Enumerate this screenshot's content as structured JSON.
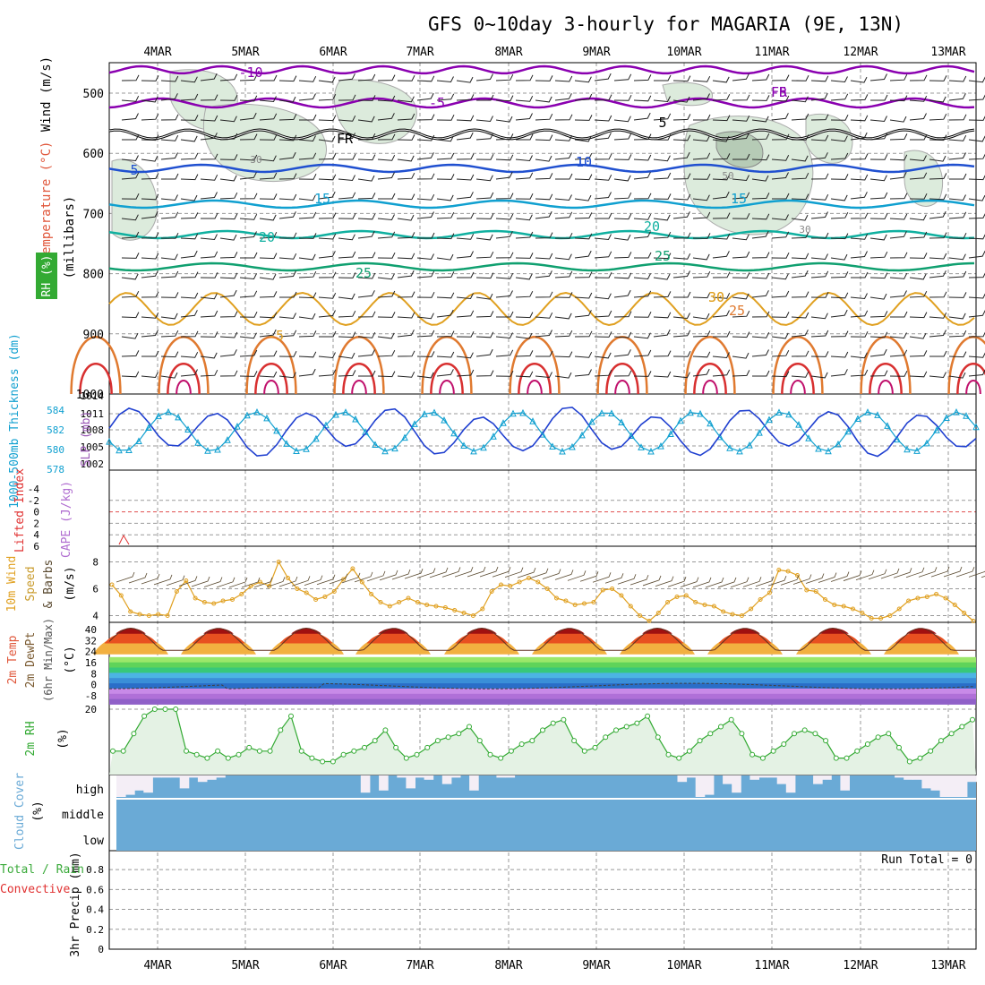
{
  "title": "GFS 0~10day 3-hourly for MAGARIA (9E, 13N)",
  "dates": [
    "4MAR",
    "5MAR",
    "6MAR",
    "7MAR",
    "8MAR",
    "9MAR",
    "10MAR",
    "11MAR",
    "12MAR",
    "13MAR"
  ],
  "colors": {
    "temp_labels": "#e0563a",
    "rh_green": "#33aa33",
    "purple": "#8a00b0",
    "blue": "#2050d0",
    "cyan": "#10a0d0",
    "teal": "#10b0a0",
    "green": "#10a070",
    "orange": "#e0a020",
    "red": "#d02040",
    "cloud": "#6aaad6"
  },
  "panels": {
    "sounding": {
      "ylabel_wind": "Wind (m/s)",
      "ylabel_temp": "Temperature (°C)",
      "ylabel_mb": "(millibars)",
      "rh_legend": "RH (%)",
      "yticks": [
        "500",
        "600",
        "700",
        "800",
        "900",
        "1000"
      ],
      "isotherm_labels": [
        "-10",
        "-5",
        "FR",
        "-5",
        "5",
        "10",
        "15",
        "20",
        "25",
        "30",
        "25",
        "-5",
        "FR",
        "5",
        "10",
        "15",
        "20",
        "25",
        "30"
      ],
      "rh_labels": [
        "30",
        "50",
        "30"
      ]
    },
    "thickness": {
      "ylabel_left": "1000-500mb Thickness (dm)",
      "ylabel_right": "SLP (mb)",
      "left_ticks": [
        "578",
        "580",
        "582",
        "584"
      ],
      "right_ticks": [
        "1002",
        "1005",
        "1008",
        "1011",
        "1014"
      ]
    },
    "lifted": {
      "ylabel_left": "Lifted Index",
      "ylabel_right": "CAPE (J/kg)",
      "ticks": [
        "-4",
        "-2",
        "0",
        "2",
        "4",
        "6"
      ]
    },
    "wind10": {
      "ylabel_left": "10m Wind",
      "ylabel_mid": "Speed",
      "ylabel_right": "& Barbs",
      "unit": "(m/s)",
      "ticks": [
        "8",
        "6",
        "4"
      ]
    },
    "temp2m": {
      "ylabel_1": "2m Temp",
      "ylabel_2": "2m DewPt",
      "ylabel_3": "(6hr Min/Max)",
      "unit": "(°C)",
      "ticks": [
        "40",
        "32",
        "24",
        "16",
        "8",
        "0",
        "-8"
      ]
    },
    "rh2m": {
      "ylabel": "2m RH",
      "unit": "(%)",
      "ticks": [
        "20"
      ]
    },
    "cloud": {
      "ylabel": "Cloud Cover",
      "unit": "(%)",
      "levels": [
        "high",
        "middle",
        "low"
      ]
    },
    "precip": {
      "ylabel_1": "3hr Precip (mm)",
      "ylabel_total": "Total / Rain",
      "ylabel_conv": "Convective",
      "run_total": "Run Total = 0",
      "ticks": [
        "0.8",
        "0.6",
        "0.4",
        "0.2",
        "0"
      ]
    }
  },
  "chart_data": [
    {
      "type": "line",
      "name": "1000-500mb Thickness & SLP",
      "x": [
        "4MAR",
        "5MAR",
        "6MAR",
        "7MAR",
        "8MAR",
        "9MAR",
        "10MAR",
        "11MAR",
        "12MAR",
        "13MAR"
      ],
      "series": [
        {
          "name": "SLP (mb)",
          "values": [
            1009,
            1010,
            1011,
            1009,
            1013,
            1010,
            1009,
            1007,
            1007,
            1005
          ]
        },
        {
          "name": "Thickness (dm)",
          "values": [
            582,
            581,
            580,
            580,
            580,
            582,
            583,
            583,
            583,
            582
          ]
        }
      ]
    },
    {
      "type": "line",
      "name": "10m Wind Speed",
      "unit": "m/s",
      "ylim": [
        3.5,
        8.5
      ],
      "values": [
        6.3,
        5.5,
        4.3,
        4.1,
        4.0,
        4.1,
        4.0,
        5.8,
        6.6,
        5.3,
        5.0,
        4.9,
        5.1,
        5.2,
        5.6,
        6.2,
        6.5,
        6.2,
        8.0,
        6.8,
        6.0,
        5.7,
        5.2,
        5.4,
        5.8,
        6.7,
        7.5,
        6.5,
        5.6,
        5.0,
        4.7,
        5.0,
        5.3,
        5.0,
        4.8,
        4.7,
        4.6,
        4.4,
        4.2,
        4.0,
        4.5,
        5.8,
        6.3,
        6.2,
        6.5,
        6.8,
        6.5,
        6.0,
        5.3,
        5.1,
        4.8,
        4.9,
        5.0,
        5.9,
        6.0,
        5.5,
        4.7,
        4.0,
        3.6,
        4.2,
        5.0,
        5.4,
        5.5,
        5.0,
        4.8,
        4.7,
        4.3,
        4.1,
        4.0,
        4.5,
        5.2,
        5.7,
        7.4,
        7.3,
        7.0,
        5.9,
        5.8,
        5.2,
        4.8,
        4.7,
        4.5,
        4.2,
        3.8,
        3.8,
        4.0,
        4.5,
        5.1,
        5.3,
        5.4,
        5.6,
        5.3,
        4.8,
        4.2,
        3.6
      ]
    },
    {
      "type": "area",
      "name": "2m RH",
      "unit": "%",
      "values": [
        8,
        8,
        13,
        18,
        20,
        20,
        20,
        8,
        7,
        6,
        8,
        6,
        7,
        9,
        8,
        8,
        14,
        18,
        8,
        6,
        5,
        5,
        7,
        8,
        9,
        11,
        14,
        9,
        6,
        7,
        9,
        11,
        12,
        13,
        15,
        11,
        7,
        6,
        8,
        10,
        11,
        14,
        16,
        17,
        11,
        8,
        9,
        12,
        14,
        15,
        16,
        18,
        12,
        7,
        6,
        8,
        11,
        13,
        15,
        17,
        13,
        7,
        6,
        8,
        10,
        13,
        14,
        13,
        11,
        6,
        6,
        8,
        10,
        12,
        13,
        9,
        5,
        6,
        8,
        11,
        13,
        15,
        17
      ]
    },
    {
      "type": "area",
      "name": "2m Temp",
      "unit": "°C",
      "series": [
        {
          "name": "2m Temp",
          "values": [
            30,
            33,
            38,
            40,
            36,
            32,
            28,
            26,
            30,
            36,
            39,
            37,
            32,
            28,
            25,
            30,
            36,
            40,
            37,
            32,
            28,
            26,
            30,
            36,
            40,
            37,
            32,
            28,
            25,
            29,
            35,
            40,
            38,
            33,
            28,
            25,
            30,
            36,
            40,
            37,
            32,
            28,
            26,
            30,
            36,
            41,
            38,
            33,
            29,
            27,
            31,
            36,
            41,
            38,
            33,
            29,
            27,
            31,
            37,
            41,
            38,
            33,
            29,
            27,
            31,
            36,
            41,
            38,
            33,
            29,
            26,
            28
          ]
        },
        {
          "name": "2m DewPt",
          "values": [
            -1,
            -1,
            -2,
            -4,
            -5,
            -4,
            -3,
            -2,
            -1,
            -1,
            -1,
            -2,
            -2,
            -1,
            0,
            0,
            -1,
            -1,
            0,
            -1,
            -1,
            -1,
            0,
            0,
            0,
            -1,
            -1,
            -1,
            0,
            0,
            1,
            1,
            0,
            -1,
            0,
            0,
            0,
            1,
            0,
            0
          ]
        }
      ]
    },
    {
      "type": "bar",
      "name": "High Cloud Cover",
      "unit": "%",
      "values": [
        100,
        90,
        70,
        80,
        10,
        10,
        10,
        60,
        10,
        30,
        20,
        10,
        0,
        0,
        0,
        0,
        0,
        0,
        0,
        0,
        0,
        0,
        0,
        0,
        0,
        0,
        0,
        80,
        0,
        70,
        0,
        10,
        60,
        10,
        20,
        0,
        40,
        10,
        0,
        70,
        0,
        0,
        10,
        10,
        0,
        0,
        0,
        0,
        0,
        0,
        0,
        0,
        0,
        0,
        0,
        0,
        0,
        0,
        0,
        0,
        0,
        0,
        30,
        10,
        100,
        90,
        0,
        40,
        80,
        0,
        20,
        10,
        10,
        40,
        80,
        0,
        0,
        40,
        20,
        0,
        70,
        0,
        0,
        0,
        0,
        0,
        10,
        20,
        20,
        60,
        70,
        100,
        100,
        100,
        30
      ]
    },
    {
      "type": "bar",
      "name": "3hr Precip",
      "unit": "mm",
      "ylim": [
        0,
        1
      ],
      "values": [
        0,
        0,
        0,
        0,
        0,
        0,
        0,
        0,
        0,
        0
      ]
    }
  ]
}
